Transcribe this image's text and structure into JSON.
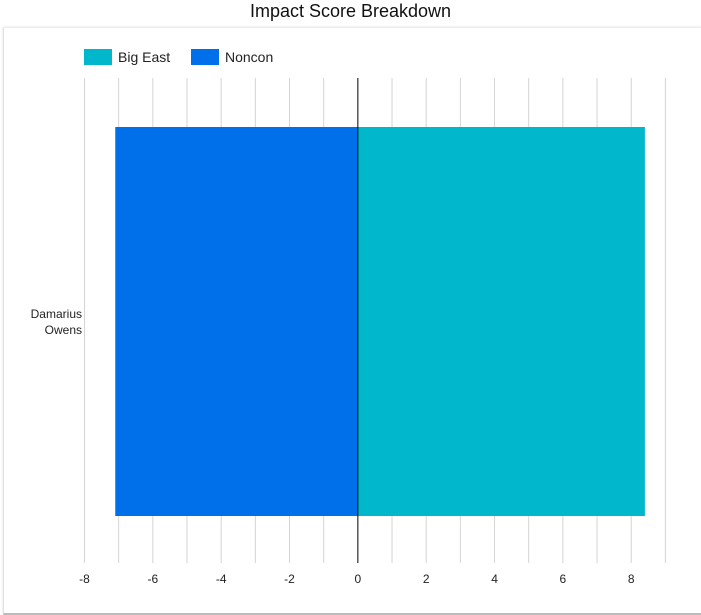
{
  "chart_data": {
    "type": "bar",
    "orientation": "horizontal",
    "title": "Impact Score Breakdown",
    "categories": [
      "Damarius Owens"
    ],
    "series": [
      {
        "name": "Big East",
        "values": [
          8.4
        ],
        "color": "#00b7cc"
      },
      {
        "name": "Noncon",
        "values": [
          -7.1
        ],
        "color": "#0070ea"
      }
    ],
    "xlim": [
      -8,
      9
    ],
    "xticks": [
      -8,
      -6,
      -4,
      -2,
      0,
      2,
      4,
      6,
      8
    ],
    "grid": true,
    "legend": "top-left",
    "xlabel": "",
    "ylabel": ""
  }
}
